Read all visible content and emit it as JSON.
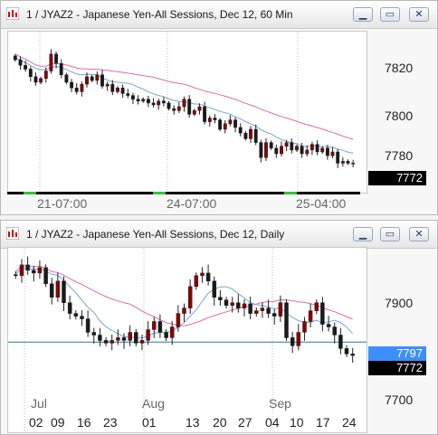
{
  "window1": {
    "title": "1 / JYAZ2 - Japanese Yen-All Sessions, Dec 12, 60 Min",
    "y_labels": [
      "7820",
      "7800",
      "7780"
    ],
    "price_tag": "7772",
    "x_labels": [
      "21-07:00",
      "24-07:00",
      "25-04:00"
    ],
    "buttons": {
      "minimize": "▁",
      "restore": "▭",
      "close": "✕"
    }
  },
  "window2": {
    "title": "1 / JYAZ2 - Japanese Yen-All Sessions, Dec 12, Daily",
    "y_labels": [
      "7900",
      "7800",
      "7700"
    ],
    "price_tag": "7772",
    "line_tag": "7797",
    "month_labels": [
      "Jul",
      "Aug",
      "Sep"
    ],
    "day_labels": [
      "02",
      "09",
      "16",
      "23",
      "01",
      "13",
      "20",
      "27",
      "04",
      "10",
      "17",
      "24"
    ],
    "buttons": {
      "minimize": "▁",
      "restore": "▭",
      "close": "✕"
    }
  },
  "colors": {
    "up": "#8b0000",
    "down": "#1a1a1a",
    "ma_fast": "#6fa8dc",
    "ma_slow": "#e06aa8",
    "hline": "#2a7aa0",
    "tag_blue": "#3d8eff"
  },
  "chart_data": [
    {
      "type": "candlestick",
      "title": "1 / JYAZ2 - Japanese Yen-All Sessions, Dec 12, 60 Min",
      "ylim": [
        7765,
        7840
      ],
      "ticks_y": [
        7820,
        7800,
        7780
      ],
      "x_labels": [
        "21-07:00",
        "24-07:00",
        "25-04:00"
      ],
      "close": [
        7827,
        7824,
        7822,
        7818,
        7815,
        7817,
        7821,
        7830,
        7825,
        7819,
        7815,
        7812,
        7810,
        7814,
        7818,
        7816,
        7819,
        7813,
        7814,
        7810,
        7812,
        7809,
        7808,
        7806,
        7805,
        7806,
        7804,
        7803,
        7805,
        7804,
        7801,
        7800,
        7802,
        7806,
        7798,
        7800,
        7802,
        7794,
        7796,
        7795,
        7790,
        7793,
        7795,
        7791,
        7788,
        7785,
        7790,
        7783,
        7775,
        7783,
        7780,
        7777,
        7781,
        7783,
        7779,
        7781,
        7777,
        7779,
        7782,
        7778,
        7780,
        7776,
        7778,
        7772,
        7773,
        7772,
        7772
      ]
    },
    {
      "type": "candlestick",
      "title": "1 / JYAZ2 - Japanese Yen-All Sessions, Dec 12, Daily",
      "ylim": [
        7680,
        7965
      ],
      "ticks_y": [
        7900,
        7800,
        7700
      ],
      "x_labels": [
        "02",
        "09",
        "16",
        "23",
        "01",
        "13",
        "20",
        "27",
        "04",
        "10",
        "17",
        "24"
      ],
      "months": [
        "Jul",
        "Aug",
        "Sep"
      ],
      "hline": 7797,
      "close": [
        7920,
        7940,
        7930,
        7925,
        7935,
        7905,
        7880,
        7910,
        7870,
        7850,
        7845,
        7840,
        7815,
        7810,
        7800,
        7795,
        7800,
        7805,
        7800,
        7815,
        7795,
        7800,
        7820,
        7835,
        7815,
        7805,
        7825,
        7850,
        7860,
        7900,
        7920,
        7925,
        7910,
        7880,
        7875,
        7865,
        7870,
        7860,
        7868,
        7850,
        7855,
        7860,
        7850,
        7845,
        7870,
        7805,
        7790,
        7815,
        7835,
        7855,
        7870,
        7830,
        7825,
        7810,
        7785,
        7775,
        7772
      ]
    }
  ]
}
